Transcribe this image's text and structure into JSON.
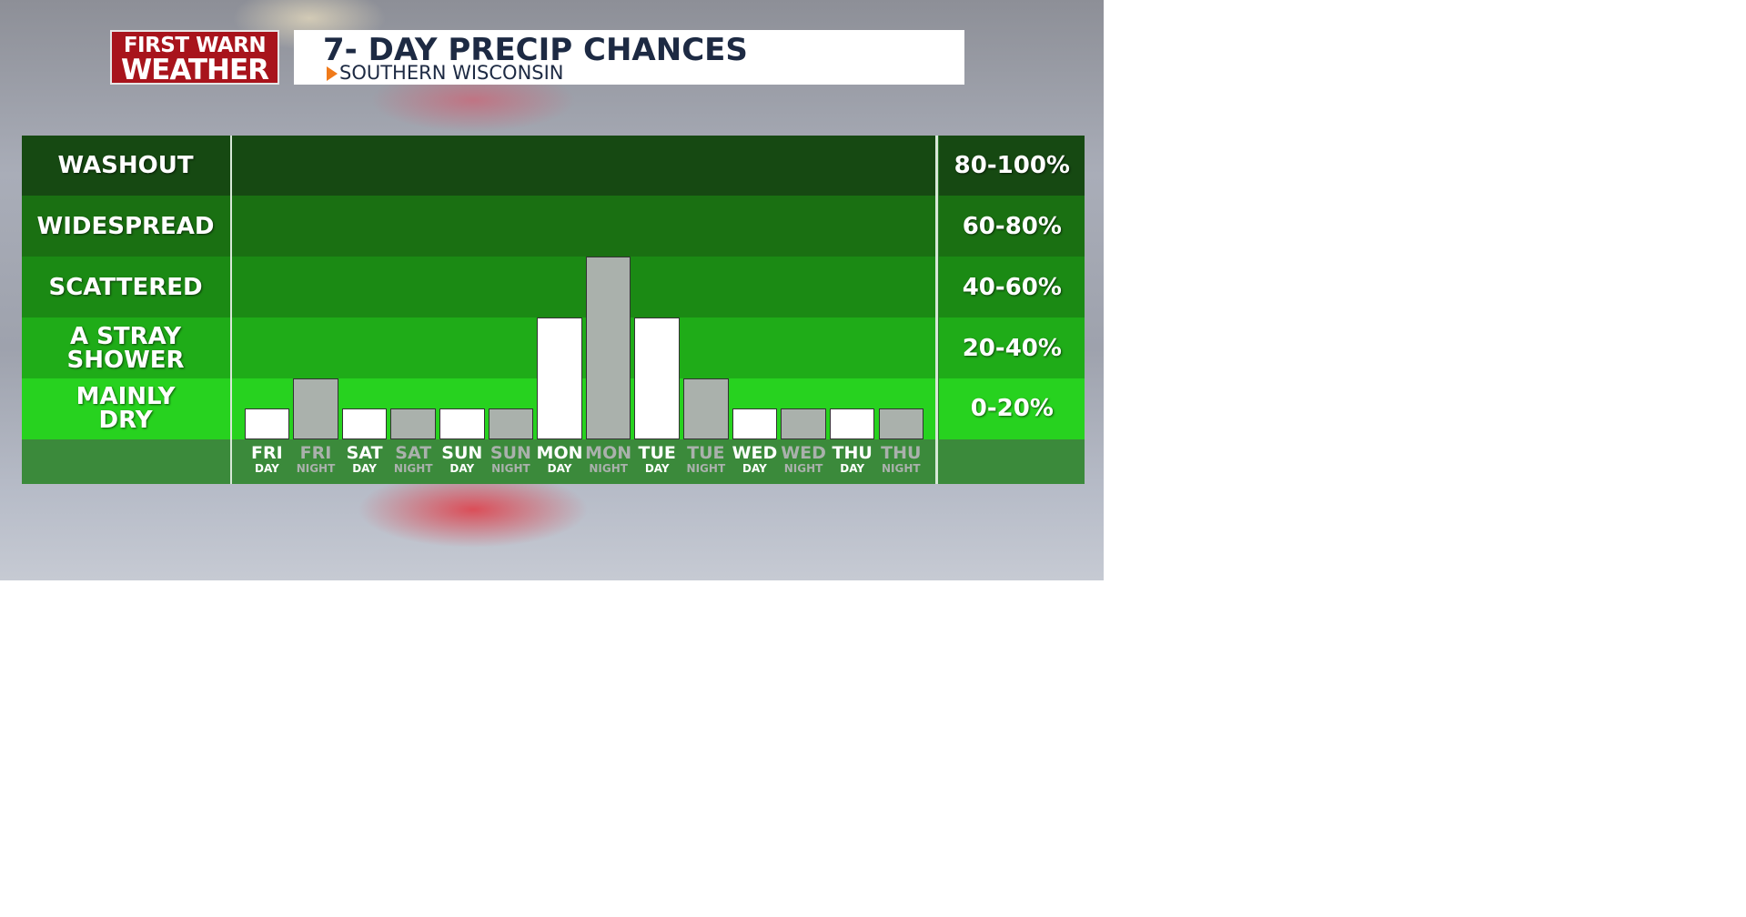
{
  "logo": {
    "line1": "FIRST WARN",
    "line2": "WEATHER"
  },
  "chart_data": {
    "type": "bar",
    "title": "7- DAY PRECIP CHANCES",
    "subtitle": "SOUTHERN WISCONSIN",
    "bands": [
      {
        "label": "WASHOUT",
        "range": "80-100%",
        "color": "#164912"
      },
      {
        "label": "WIDESPREAD",
        "range": "60-80%",
        "color": "#1a7012"
      },
      {
        "label": "SCATTERED",
        "range": "40-60%",
        "color": "#1b8a14"
      },
      {
        "label": "A STRAY SHOWER",
        "range": "20-40%",
        "color": "#1fac18"
      },
      {
        "label": "MAINLY DRY",
        "range": "0-20%",
        "color": "#27d21f"
      }
    ],
    "categories": [
      "FRI",
      "FRI",
      "SAT",
      "SAT",
      "SUN",
      "SUN",
      "MON",
      "MON",
      "TUE",
      "TUE",
      "WED",
      "WED",
      "THU",
      "THU"
    ],
    "periods": [
      "DAY",
      "NIGHT",
      "DAY",
      "NIGHT",
      "DAY",
      "NIGHT",
      "DAY",
      "NIGHT",
      "DAY",
      "NIGHT",
      "DAY",
      "NIGHT",
      "DAY",
      "NIGHT"
    ],
    "values": [
      10,
      20,
      10,
      10,
      10,
      10,
      40,
      60,
      40,
      20,
      10,
      10,
      10,
      10
    ],
    "colors": [
      "#ffffff",
      "#aab1ac",
      "#ffffff",
      "#aab1ac",
      "#ffffff",
      "#aab1ac",
      "#ffffff",
      "#aab1ac",
      "#ffffff",
      "#aab1ac",
      "#ffffff",
      "#aab1ac",
      "#ffffff",
      "#aab1ac"
    ],
    "ylim": [
      0,
      100
    ]
  }
}
